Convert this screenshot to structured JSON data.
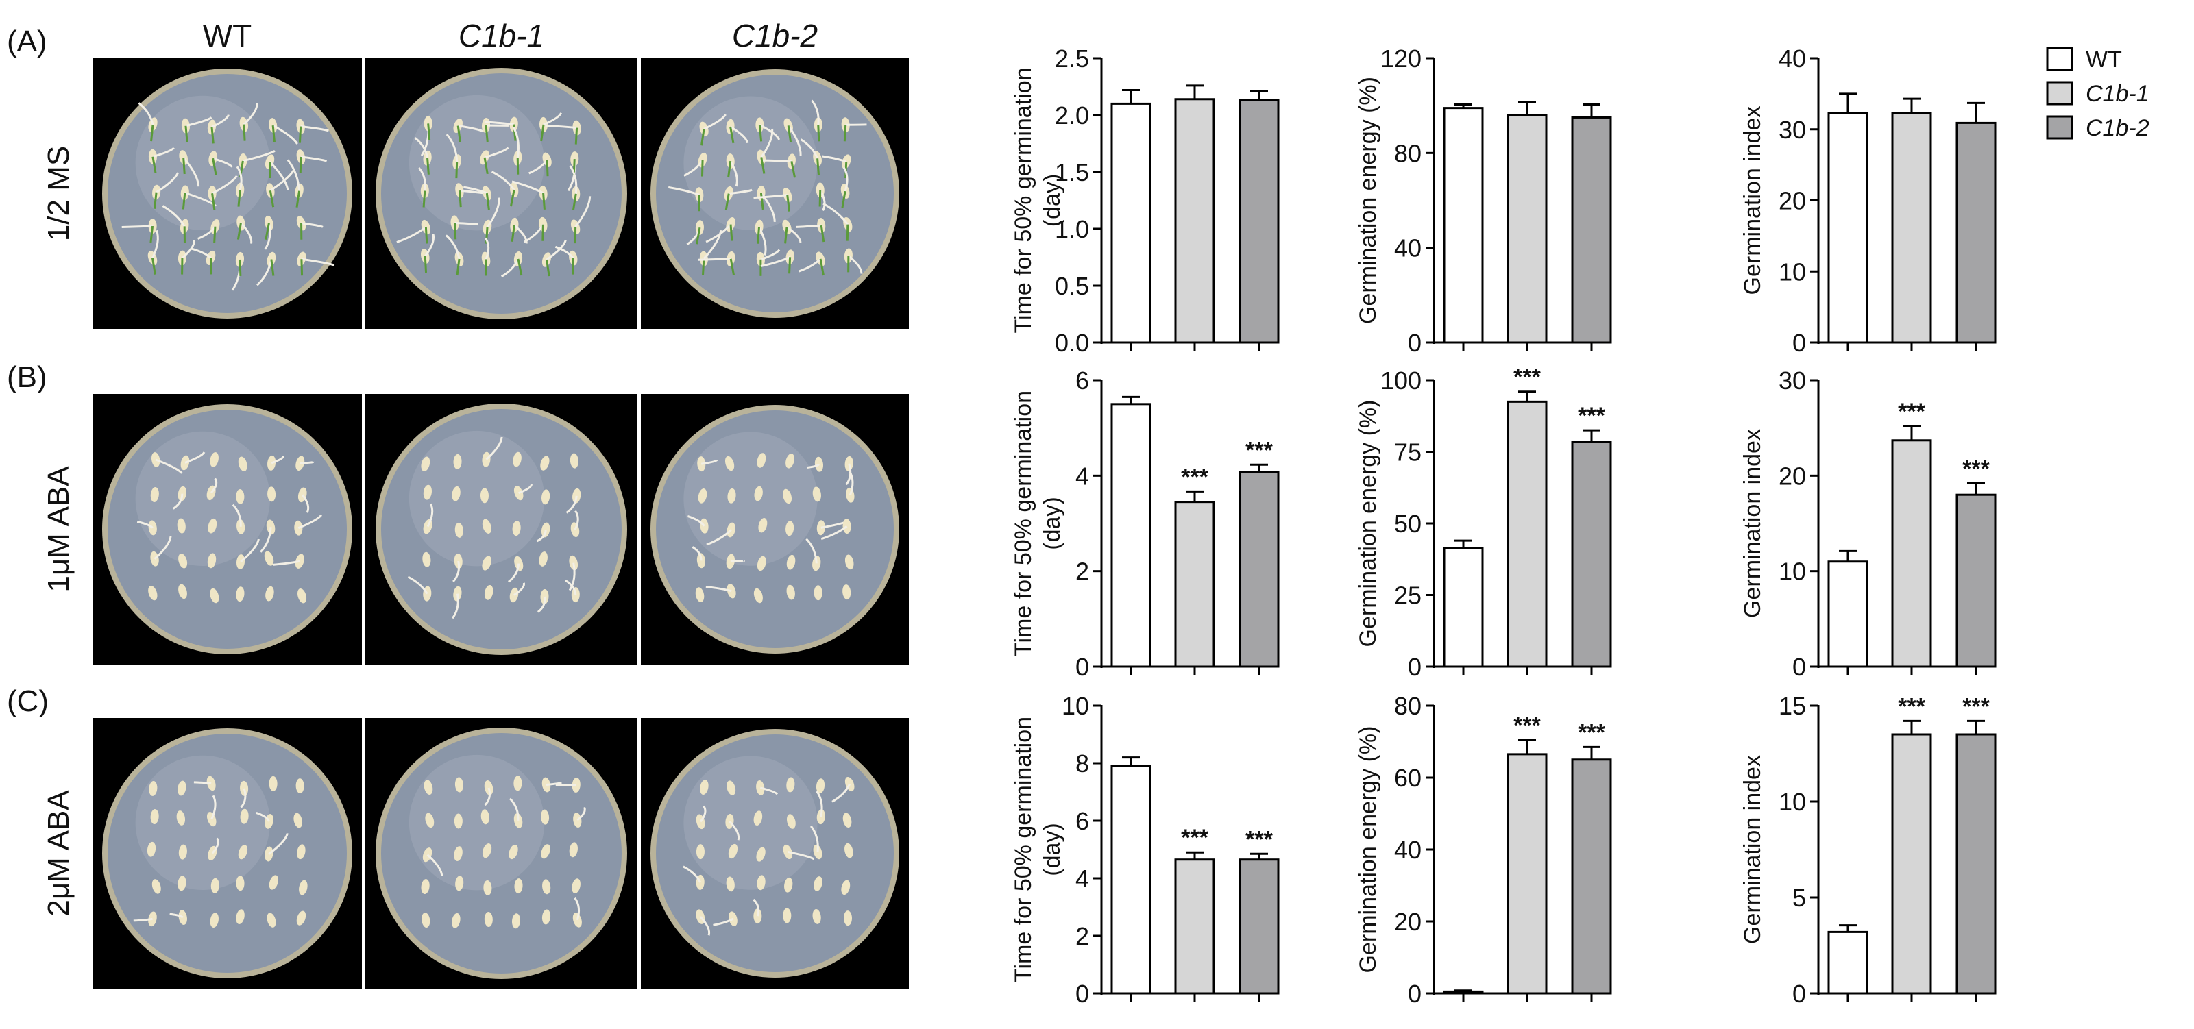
{
  "panels": [
    {
      "label": "(A)",
      "condition": "1/2 MS"
    },
    {
      "label": "(B)",
      "condition": "1μM ABA"
    },
    {
      "label": "(C)",
      "condition": "2μM ABA"
    }
  ],
  "genotypes": [
    {
      "name": "WT",
      "italic": false,
      "color": "#ffffff"
    },
    {
      "name": "C1b-1",
      "italic": true,
      "color": "#d6d6d6"
    },
    {
      "name": "C1b-2",
      "italic": true,
      "color": "#a4a4a6"
    }
  ],
  "legend": {
    "items": [
      "WT",
      "C1b-1",
      "C1b-2"
    ],
    "placement": "top-right"
  },
  "colors": {
    "bar_edge": "#000000",
    "photo_background": "#000000",
    "plate": "#8a96a8"
  },
  "chart_data": [
    {
      "type": "bar",
      "row": 0,
      "col": 0,
      "ylabel": "Time for 50% germination (day)",
      "ylim": [
        0,
        2.5
      ],
      "ticks": [
        0,
        0.5,
        1.0,
        1.5,
        2.0,
        2.5
      ],
      "tick_labels": [
        "0.0",
        "0.5",
        "1.0",
        "1.5",
        "2.0",
        "2.5"
      ],
      "categories": [
        "WT",
        "C1b-1",
        "C1b-2"
      ],
      "values": [
        2.1,
        2.14,
        2.13
      ],
      "errors": [
        0.12,
        0.12,
        0.08
      ],
      "significance": [
        "",
        "",
        ""
      ]
    },
    {
      "type": "bar",
      "row": 0,
      "col": 1,
      "ylabel": "Germination energy (%)",
      "ylim": [
        0,
        120
      ],
      "ticks": [
        0,
        40,
        80,
        120
      ],
      "tick_labels": [
        "0",
        "40",
        "80",
        "120"
      ],
      "categories": [
        "WT",
        "C1b-1",
        "C1b-2"
      ],
      "values": [
        99,
        96,
        95
      ],
      "errors": [
        1.5,
        5.5,
        5.5
      ],
      "significance": [
        "",
        "",
        ""
      ]
    },
    {
      "type": "bar",
      "row": 0,
      "col": 2,
      "ylabel": "Germination index",
      "ylim": [
        0,
        40
      ],
      "ticks": [
        0,
        10,
        20,
        30,
        40
      ],
      "tick_labels": [
        "0",
        "10",
        "20",
        "30",
        "40"
      ],
      "categories": [
        "WT",
        "C1b-1",
        "C1b-2"
      ],
      "values": [
        32.3,
        32.3,
        30.9
      ],
      "errors": [
        2.7,
        2.0,
        2.8
      ],
      "significance": [
        "",
        "",
        ""
      ]
    },
    {
      "type": "bar",
      "row": 1,
      "col": 0,
      "ylabel": "Time for 50% germination (day)",
      "ylim": [
        0,
        6
      ],
      "ticks": [
        0,
        2,
        4,
        6
      ],
      "tick_labels": [
        "0",
        "2",
        "4",
        "6"
      ],
      "categories": [
        "WT",
        "C1b-1",
        "C1b-2"
      ],
      "values": [
        5.5,
        3.45,
        4.08
      ],
      "errors": [
        0.15,
        0.22,
        0.15
      ],
      "significance": [
        "",
        "***",
        "***"
      ]
    },
    {
      "type": "bar",
      "row": 1,
      "col": 1,
      "ylabel": "Germination energy (%)",
      "ylim": [
        0,
        100
      ],
      "ticks": [
        0,
        25,
        50,
        75,
        100
      ],
      "tick_labels": [
        "0",
        "25",
        "50",
        "75",
        "100"
      ],
      "categories": [
        "WT",
        "C1b-1",
        "C1b-2"
      ],
      "values": [
        41.5,
        92.5,
        78.5
      ],
      "errors": [
        2.5,
        3.5,
        4.0
      ],
      "significance": [
        "",
        "***",
        "***"
      ]
    },
    {
      "type": "bar",
      "row": 1,
      "col": 2,
      "ylabel": "Germination index",
      "ylim": [
        0,
        30
      ],
      "ticks": [
        0,
        10,
        20,
        30
      ],
      "tick_labels": [
        "0",
        "10",
        "20",
        "30"
      ],
      "categories": [
        "WT",
        "C1b-1",
        "C1b-2"
      ],
      "values": [
        11.0,
        23.7,
        18.0
      ],
      "errors": [
        1.1,
        1.5,
        1.2
      ],
      "significance": [
        "",
        "***",
        "***"
      ]
    },
    {
      "type": "bar",
      "row": 2,
      "col": 0,
      "ylabel": "Time for 50% germination (day)",
      "ylim": [
        0,
        10
      ],
      "ticks": [
        0,
        2,
        4,
        6,
        8,
        10
      ],
      "tick_labels": [
        "0",
        "2",
        "4",
        "6",
        "8",
        "10"
      ],
      "categories": [
        "WT",
        "C1b-1",
        "C1b-2"
      ],
      "values": [
        7.9,
        4.65,
        4.65
      ],
      "errors": [
        0.3,
        0.25,
        0.2
      ],
      "significance": [
        "",
        "***",
        "***"
      ]
    },
    {
      "type": "bar",
      "row": 2,
      "col": 1,
      "ylabel": "Germination energy (%)",
      "ylim": [
        0,
        80
      ],
      "ticks": [
        0,
        20,
        40,
        60,
        80
      ],
      "tick_labels": [
        "0",
        "20",
        "40",
        "60",
        "80"
      ],
      "categories": [
        "WT",
        "C1b-1",
        "C1b-2"
      ],
      "values": [
        0.5,
        66.5,
        65.0
      ],
      "errors": [
        0.3,
        4.0,
        3.5
      ],
      "significance": [
        "",
        "***",
        "***"
      ]
    },
    {
      "type": "bar",
      "row": 2,
      "col": 2,
      "ylabel": "Germination index",
      "ylim": [
        0,
        15
      ],
      "ticks": [
        0,
        5,
        10,
        15
      ],
      "tick_labels": [
        "0",
        "5",
        "10",
        "15"
      ],
      "categories": [
        "WT",
        "C1b-1",
        "C1b-2"
      ],
      "values": [
        3.2,
        13.5,
        13.5
      ],
      "errors": [
        0.35,
        0.7,
        0.7
      ],
      "significance": [
        "",
        "***",
        "***"
      ]
    }
  ]
}
